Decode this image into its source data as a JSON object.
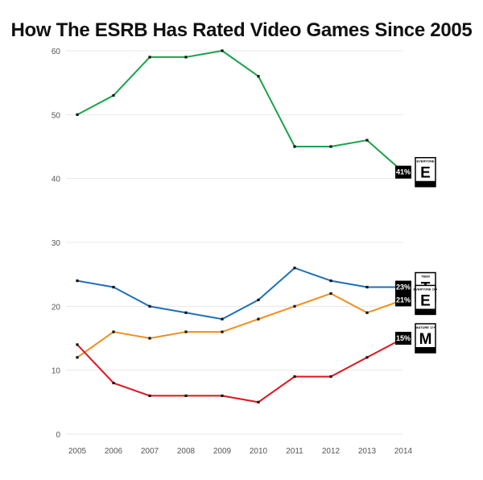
{
  "chart_data": {
    "type": "line",
    "title": "How The ESRB Has Rated Video Games Since 2005",
    "x": [
      "2005",
      "2006",
      "2007",
      "2008",
      "2009",
      "2010",
      "2011",
      "2012",
      "2013",
      "2014"
    ],
    "ylim": [
      0,
      60
    ],
    "yticks": [
      0,
      10,
      20,
      30,
      40,
      50,
      60
    ],
    "grid": true,
    "series": [
      {
        "color": "#1aa34a",
        "end_label": "41%",
        "values": [
          50,
          53,
          59,
          59,
          60,
          56,
          45,
          45,
          46,
          41
        ]
      },
      {
        "color": "#1f6fb5",
        "end_label": "23%",
        "values": [
          24,
          23,
          20,
          19,
          18,
          21,
          26,
          24,
          23,
          23
        ]
      },
      {
        "color": "#f28e1c",
        "end_label": "21%",
        "values": [
          12,
          16,
          15,
          16,
          16,
          18,
          20,
          22,
          19,
          21
        ]
      },
      {
        "color": "#e0141e",
        "end_label": "15%",
        "values": [
          14,
          8,
          6,
          6,
          6,
          5,
          9,
          9,
          12,
          15
        ]
      }
    ],
    "logos": [
      {
        "icon": "esrb-everyone-icon",
        "top": "EVERYONE",
        "letter": "E",
        "bottom": "ESRB"
      },
      {
        "icon": "esrb-teen-icon",
        "top": "TEEN",
        "letter": "T",
        "bottom": "ESRB"
      },
      {
        "icon": "esrb-everyone-10-icon",
        "top": "EVERYONE 10+",
        "letter": "E",
        "bottom": "ESRB"
      },
      {
        "icon": "esrb-mature-icon",
        "top": "MATURE 17+",
        "letter": "M",
        "bottom": "ESRB"
      }
    ]
  }
}
